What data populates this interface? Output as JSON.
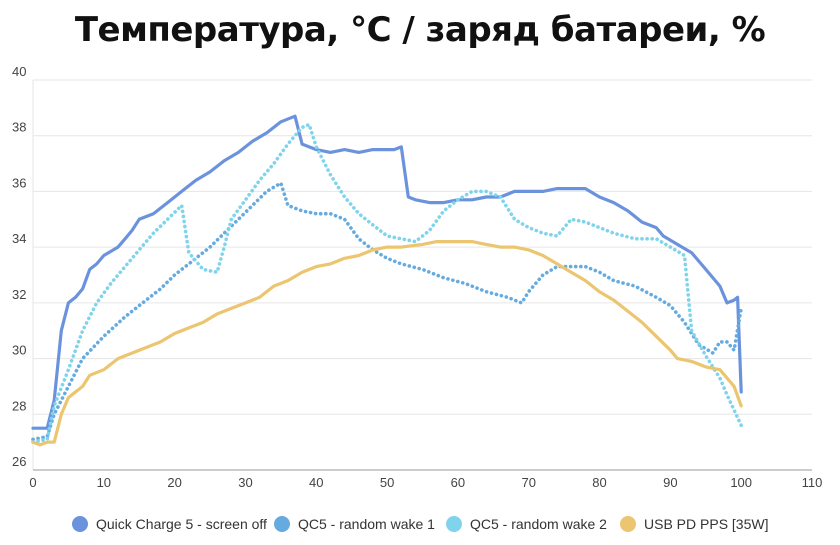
{
  "chart_data": {
    "type": "line",
    "title": "Температура, °C / заряд батареи, %",
    "xlabel": "",
    "ylabel": "",
    "xlim": [
      0,
      110
    ],
    "ylim": [
      26,
      40
    ],
    "xticks": [
      "0",
      "10",
      "20",
      "30",
      "40",
      "50",
      "60",
      "70",
      "80",
      "90",
      "100",
      "110"
    ],
    "yticks": [
      "26",
      "28",
      "30",
      "32",
      "34",
      "36",
      "38",
      "40"
    ],
    "grid": true,
    "legend_position": "bottom",
    "series": [
      {
        "name": "Quick Charge 5 - screen off",
        "color": "#6b93dd",
        "style": "solid",
        "points": [
          [
            0,
            27.5
          ],
          [
            2,
            27.5
          ],
          [
            3,
            28.5
          ],
          [
            4,
            31.0
          ],
          [
            5,
            32.0
          ],
          [
            6,
            32.2
          ],
          [
            7,
            32.5
          ],
          [
            8,
            33.2
          ],
          [
            9,
            33.4
          ],
          [
            10,
            33.7
          ],
          [
            12,
            34.0
          ],
          [
            13,
            34.3
          ],
          [
            14,
            34.6
          ],
          [
            15,
            35.0
          ],
          [
            17,
            35.2
          ],
          [
            19,
            35.6
          ],
          [
            21,
            36.0
          ],
          [
            23,
            36.4
          ],
          [
            25,
            36.7
          ],
          [
            27,
            37.1
          ],
          [
            29,
            37.4
          ],
          [
            31,
            37.8
          ],
          [
            33,
            38.1
          ],
          [
            35,
            38.5
          ],
          [
            37,
            38.7
          ],
          [
            38,
            37.7
          ],
          [
            40,
            37.5
          ],
          [
            42,
            37.4
          ],
          [
            44,
            37.5
          ],
          [
            46,
            37.4
          ],
          [
            48,
            37.5
          ],
          [
            51,
            37.5
          ],
          [
            52,
            37.6
          ],
          [
            53,
            35.8
          ],
          [
            54,
            35.7
          ],
          [
            56,
            35.6
          ],
          [
            58,
            35.6
          ],
          [
            60,
            35.7
          ],
          [
            62,
            35.7
          ],
          [
            64,
            35.8
          ],
          [
            66,
            35.8
          ],
          [
            68,
            36.0
          ],
          [
            70,
            36.0
          ],
          [
            72,
            36.0
          ],
          [
            74,
            36.1
          ],
          [
            76,
            36.1
          ],
          [
            78,
            36.1
          ],
          [
            80,
            35.8
          ],
          [
            82,
            35.6
          ],
          [
            84,
            35.3
          ],
          [
            86,
            34.9
          ],
          [
            88,
            34.7
          ],
          [
            89,
            34.4
          ],
          [
            91,
            34.1
          ],
          [
            93,
            33.8
          ],
          [
            95,
            33.2
          ],
          [
            97,
            32.6
          ],
          [
            98,
            32.0
          ],
          [
            99,
            32.1
          ],
          [
            99.5,
            32.2
          ],
          [
            100,
            28.8
          ]
        ]
      },
      {
        "name": "QC5 - random wake 1",
        "color": "#66abe0",
        "style": "dotted",
        "points": [
          [
            0,
            27.1
          ],
          [
            2,
            27.2
          ],
          [
            3,
            28.0
          ],
          [
            5,
            29.0
          ],
          [
            7,
            30.0
          ],
          [
            10,
            30.8
          ],
          [
            13,
            31.5
          ],
          [
            15,
            31.9
          ],
          [
            18,
            32.5
          ],
          [
            20,
            33.0
          ],
          [
            22,
            33.4
          ],
          [
            25,
            34.0
          ],
          [
            27,
            34.5
          ],
          [
            29,
            35.0
          ],
          [
            31,
            35.5
          ],
          [
            33,
            36.0
          ],
          [
            35,
            36.3
          ],
          [
            36,
            35.5
          ],
          [
            38,
            35.3
          ],
          [
            40,
            35.2
          ],
          [
            42,
            35.2
          ],
          [
            44,
            35.0
          ],
          [
            46,
            34.3
          ],
          [
            48,
            33.9
          ],
          [
            50,
            33.6
          ],
          [
            52,
            33.4
          ],
          [
            55,
            33.2
          ],
          [
            58,
            32.9
          ],
          [
            61,
            32.7
          ],
          [
            64,
            32.4
          ],
          [
            67,
            32.2
          ],
          [
            69,
            32.0
          ],
          [
            70,
            32.4
          ],
          [
            72,
            33.0
          ],
          [
            74,
            33.3
          ],
          [
            76,
            33.3
          ],
          [
            78,
            33.3
          ],
          [
            80,
            33.1
          ],
          [
            82,
            32.8
          ],
          [
            85,
            32.6
          ],
          [
            88,
            32.2
          ],
          [
            90,
            31.9
          ],
          [
            92,
            31.3
          ],
          [
            94,
            30.5
          ],
          [
            96,
            30.2
          ],
          [
            97,
            30.6
          ],
          [
            98,
            30.6
          ],
          [
            99,
            30.3
          ],
          [
            100,
            31.8
          ]
        ]
      },
      {
        "name": "QC5 - random wake 2",
        "color": "#7fd4ec",
        "style": "dotted",
        "points": [
          [
            0,
            27.0
          ],
          [
            2,
            27.1
          ],
          [
            3,
            28.3
          ],
          [
            5,
            29.6
          ],
          [
            7,
            31.0
          ],
          [
            9,
            32.0
          ],
          [
            11,
            32.7
          ],
          [
            13,
            33.3
          ],
          [
            15,
            33.9
          ],
          [
            17,
            34.5
          ],
          [
            19,
            35.0
          ],
          [
            21,
            35.5
          ],
          [
            22,
            33.8
          ],
          [
            24,
            33.2
          ],
          [
            26,
            33.1
          ],
          [
            27,
            34.0
          ],
          [
            28,
            35.0
          ],
          [
            30,
            35.7
          ],
          [
            32,
            36.4
          ],
          [
            34,
            37.0
          ],
          [
            36,
            37.7
          ],
          [
            38,
            38.3
          ],
          [
            39,
            38.4
          ],
          [
            40,
            37.6
          ],
          [
            42,
            36.6
          ],
          [
            44,
            35.8
          ],
          [
            46,
            35.2
          ],
          [
            48,
            34.8
          ],
          [
            50,
            34.4
          ],
          [
            52,
            34.3
          ],
          [
            54,
            34.2
          ],
          [
            56,
            34.6
          ],
          [
            58,
            35.3
          ],
          [
            60,
            35.7
          ],
          [
            62,
            36.0
          ],
          [
            64,
            36.0
          ],
          [
            66,
            35.8
          ],
          [
            68,
            35.0
          ],
          [
            70,
            34.7
          ],
          [
            72,
            34.5
          ],
          [
            74,
            34.4
          ],
          [
            76,
            35.0
          ],
          [
            78,
            34.9
          ],
          [
            80,
            34.7
          ],
          [
            82,
            34.5
          ],
          [
            85,
            34.3
          ],
          [
            88,
            34.3
          ],
          [
            90,
            34.0
          ],
          [
            92,
            33.7
          ],
          [
            93,
            31.0
          ],
          [
            95,
            30.1
          ],
          [
            97,
            29.3
          ],
          [
            98,
            28.7
          ],
          [
            100,
            27.6
          ]
        ]
      },
      {
        "name": "USB PD PPS [35W]",
        "color": "#ebc56f",
        "style": "solid",
        "points": [
          [
            0,
            27.0
          ],
          [
            1,
            26.9
          ],
          [
            2,
            27.0
          ],
          [
            3,
            27.0
          ],
          [
            4,
            28.0
          ],
          [
            5,
            28.6
          ],
          [
            7,
            29.0
          ],
          [
            8,
            29.4
          ],
          [
            10,
            29.6
          ],
          [
            12,
            30.0
          ],
          [
            15,
            30.3
          ],
          [
            18,
            30.6
          ],
          [
            20,
            30.9
          ],
          [
            22,
            31.1
          ],
          [
            24,
            31.3
          ],
          [
            26,
            31.6
          ],
          [
            28,
            31.8
          ],
          [
            30,
            32.0
          ],
          [
            32,
            32.2
          ],
          [
            34,
            32.6
          ],
          [
            36,
            32.8
          ],
          [
            38,
            33.1
          ],
          [
            40,
            33.3
          ],
          [
            42,
            33.4
          ],
          [
            44,
            33.6
          ],
          [
            46,
            33.7
          ],
          [
            48,
            33.9
          ],
          [
            50,
            34.0
          ],
          [
            52,
            34.0
          ],
          [
            55,
            34.1
          ],
          [
            57,
            34.2
          ],
          [
            60,
            34.2
          ],
          [
            62,
            34.2
          ],
          [
            64,
            34.1
          ],
          [
            66,
            34.0
          ],
          [
            68,
            34.0
          ],
          [
            70,
            33.9
          ],
          [
            72,
            33.7
          ],
          [
            74,
            33.4
          ],
          [
            76,
            33.1
          ],
          [
            78,
            32.8
          ],
          [
            80,
            32.4
          ],
          [
            82,
            32.1
          ],
          [
            84,
            31.7
          ],
          [
            86,
            31.3
          ],
          [
            88,
            30.8
          ],
          [
            90,
            30.3
          ],
          [
            91,
            30.0
          ],
          [
            93,
            29.9
          ],
          [
            95,
            29.7
          ],
          [
            97,
            29.6
          ],
          [
            99,
            29.0
          ],
          [
            100,
            28.3
          ]
        ]
      }
    ]
  }
}
